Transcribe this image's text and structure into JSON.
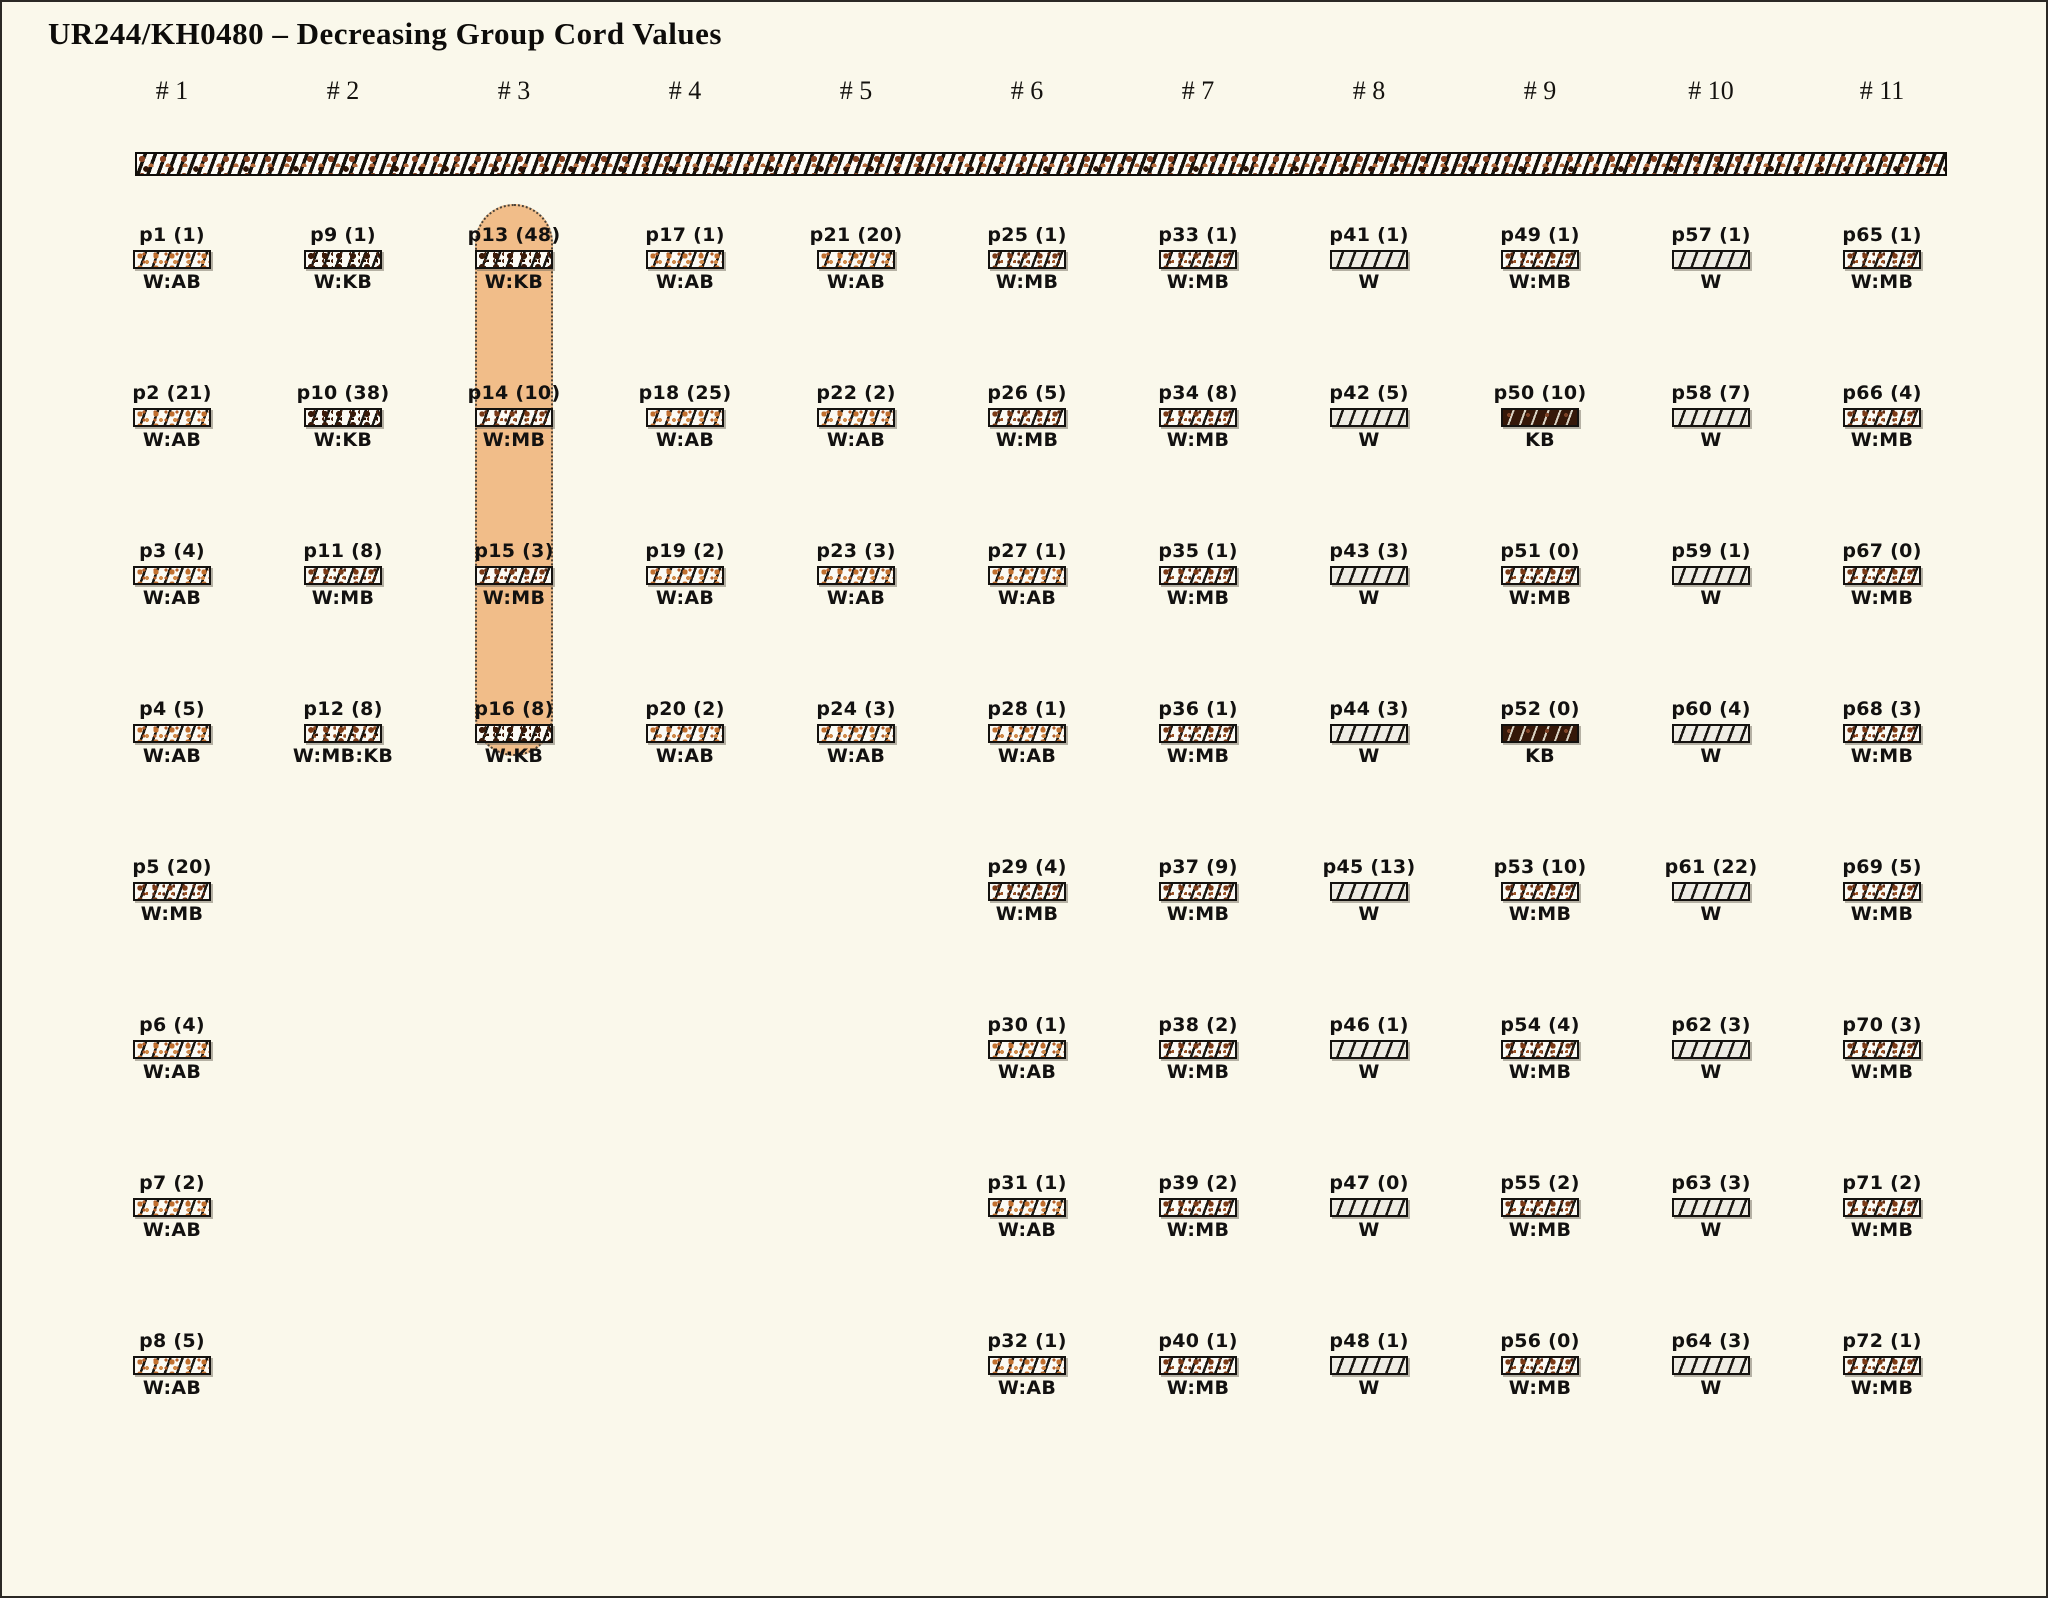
{
  "title": "UR244/KH0480 – Decreasing Group Cord Values",
  "highlight": {
    "column_header": "# 3",
    "pendant_range": "p13–p16",
    "fill_color": "#f1bd89"
  },
  "palette": {
    "background": "#faf8eb",
    "stripe": "#1a1712",
    "ab_speckle": "#c2702f",
    "mb_speckle": "#7c3a16",
    "kb_speckle": "#2c1305",
    "kb_solid": "#351809"
  },
  "primary_cord": {
    "description": "mottled white/brown barber-pole cord"
  },
  "columns": [
    {
      "header": "# 1",
      "pendants": [
        {
          "id": "p1",
          "label": "p1 (1)",
          "value": 1,
          "cord": "W:AB"
        },
        {
          "id": "p2",
          "label": "p2 (21)",
          "value": 21,
          "cord": "W:AB"
        },
        {
          "id": "p3",
          "label": "p3 (4)",
          "value": 4,
          "cord": "W:AB"
        },
        {
          "id": "p4",
          "label": "p4 (5)",
          "value": 5,
          "cord": "W:AB"
        },
        {
          "id": "p5",
          "label": "p5 (20)",
          "value": 20,
          "cord": "W:MB"
        },
        {
          "id": "p6",
          "label": "p6 (4)",
          "value": 4,
          "cord": "W:AB"
        },
        {
          "id": "p7",
          "label": "p7 (2)",
          "value": 2,
          "cord": "W:AB"
        },
        {
          "id": "p8",
          "label": "p8 (5)",
          "value": 5,
          "cord": "W:AB"
        }
      ]
    },
    {
      "header": "# 2",
      "pendants": [
        {
          "id": "p9",
          "label": "p9 (1)",
          "value": 1,
          "cord": "W:KB"
        },
        {
          "id": "p10",
          "label": "p10 (38)",
          "value": 38,
          "cord": "W:KB"
        },
        {
          "id": "p11",
          "label": "p11 (8)",
          "value": 8,
          "cord": "W:MB"
        },
        {
          "id": "p12",
          "label": "p12 (8)",
          "value": 8,
          "cord": "W:MB:KB"
        }
      ]
    },
    {
      "header": "# 3",
      "pendants": [
        {
          "id": "p13",
          "label": "p13 (48)",
          "value": 48,
          "cord": "W:KB"
        },
        {
          "id": "p14",
          "label": "p14 (10)",
          "value": 10,
          "cord": "W:MB"
        },
        {
          "id": "p15",
          "label": "p15 (3)",
          "value": 3,
          "cord": "W:MB"
        },
        {
          "id": "p16",
          "label": "p16 (8)",
          "value": 8,
          "cord": "W:KB"
        }
      ]
    },
    {
      "header": "# 4",
      "pendants": [
        {
          "id": "p17",
          "label": "p17 (1)",
          "value": 1,
          "cord": "W:AB"
        },
        {
          "id": "p18",
          "label": "p18 (25)",
          "value": 25,
          "cord": "W:AB"
        },
        {
          "id": "p19",
          "label": "p19 (2)",
          "value": 2,
          "cord": "W:AB"
        },
        {
          "id": "p20",
          "label": "p20 (2)",
          "value": 2,
          "cord": "W:AB"
        }
      ]
    },
    {
      "header": "# 5",
      "pendants": [
        {
          "id": "p21",
          "label": "p21 (20)",
          "value": 20,
          "cord": "W:AB"
        },
        {
          "id": "p22",
          "label": "p22 (2)",
          "value": 2,
          "cord": "W:AB"
        },
        {
          "id": "p23",
          "label": "p23 (3)",
          "value": 3,
          "cord": "W:AB"
        },
        {
          "id": "p24",
          "label": "p24 (3)",
          "value": 3,
          "cord": "W:AB"
        }
      ]
    },
    {
      "header": "# 6",
      "pendants": [
        {
          "id": "p25",
          "label": "p25 (1)",
          "value": 1,
          "cord": "W:MB"
        },
        {
          "id": "p26",
          "label": "p26 (5)",
          "value": 5,
          "cord": "W:MB"
        },
        {
          "id": "p27",
          "label": "p27 (1)",
          "value": 1,
          "cord": "W:AB"
        },
        {
          "id": "p28",
          "label": "p28 (1)",
          "value": 1,
          "cord": "W:AB"
        },
        {
          "id": "p29",
          "label": "p29 (4)",
          "value": 4,
          "cord": "W:MB"
        },
        {
          "id": "p30",
          "label": "p30 (1)",
          "value": 1,
          "cord": "W:AB"
        },
        {
          "id": "p31",
          "label": "p31 (1)",
          "value": 1,
          "cord": "W:AB"
        },
        {
          "id": "p32",
          "label": "p32 (1)",
          "value": 1,
          "cord": "W:AB"
        }
      ]
    },
    {
      "header": "# 7",
      "pendants": [
        {
          "id": "p33",
          "label": "p33 (1)",
          "value": 1,
          "cord": "W:MB"
        },
        {
          "id": "p34",
          "label": "p34 (8)",
          "value": 8,
          "cord": "W:MB"
        },
        {
          "id": "p35",
          "label": "p35 (1)",
          "value": 1,
          "cord": "W:MB"
        },
        {
          "id": "p36",
          "label": "p36 (1)",
          "value": 1,
          "cord": "W:MB"
        },
        {
          "id": "p37",
          "label": "p37 (9)",
          "value": 9,
          "cord": "W:MB"
        },
        {
          "id": "p38",
          "label": "p38 (2)",
          "value": 2,
          "cord": "W:MB"
        },
        {
          "id": "p39",
          "label": "p39 (2)",
          "value": 2,
          "cord": "W:MB"
        },
        {
          "id": "p40",
          "label": "p40 (1)",
          "value": 1,
          "cord": "W:MB"
        }
      ]
    },
    {
      "header": "# 8",
      "pendants": [
        {
          "id": "p41",
          "label": "p41 (1)",
          "value": 1,
          "cord": "W"
        },
        {
          "id": "p42",
          "label": "p42 (5)",
          "value": 5,
          "cord": "W"
        },
        {
          "id": "p43",
          "label": "p43 (3)",
          "value": 3,
          "cord": "W"
        },
        {
          "id": "p44",
          "label": "p44 (3)",
          "value": 3,
          "cord": "W"
        },
        {
          "id": "p45",
          "label": "p45 (13)",
          "value": 13,
          "cord": "W"
        },
        {
          "id": "p46",
          "label": "p46 (1)",
          "value": 1,
          "cord": "W"
        },
        {
          "id": "p47",
          "label": "p47 (0)",
          "value": 0,
          "cord": "W"
        },
        {
          "id": "p48",
          "label": "p48 (1)",
          "value": 1,
          "cord": "W"
        }
      ]
    },
    {
      "header": "# 9",
      "pendants": [
        {
          "id": "p49",
          "label": "p49 (1)",
          "value": 1,
          "cord": "W:MB"
        },
        {
          "id": "p50",
          "label": "p50 (10)",
          "value": 10,
          "cord": "KB"
        },
        {
          "id": "p51",
          "label": "p51 (0)",
          "value": 0,
          "cord": "W:MB"
        },
        {
          "id": "p52",
          "label": "p52 (0)",
          "value": 0,
          "cord": "KB"
        },
        {
          "id": "p53",
          "label": "p53 (10)",
          "value": 10,
          "cord": "W:MB"
        },
        {
          "id": "p54",
          "label": "p54 (4)",
          "value": 4,
          "cord": "W:MB"
        },
        {
          "id": "p55",
          "label": "p55 (2)",
          "value": 2,
          "cord": "W:MB"
        },
        {
          "id": "p56",
          "label": "p56 (0)",
          "value": 0,
          "cord": "W:MB"
        }
      ]
    },
    {
      "header": "# 10",
      "pendants": [
        {
          "id": "p57",
          "label": "p57 (1)",
          "value": 1,
          "cord": "W"
        },
        {
          "id": "p58",
          "label": "p58 (7)",
          "value": 7,
          "cord": "W"
        },
        {
          "id": "p59",
          "label": "p59 (1)",
          "value": 1,
          "cord": "W"
        },
        {
          "id": "p60",
          "label": "p60 (4)",
          "value": 4,
          "cord": "W"
        },
        {
          "id": "p61",
          "label": "p61 (22)",
          "value": 22,
          "cord": "W"
        },
        {
          "id": "p62",
          "label": "p62 (3)",
          "value": 3,
          "cord": "W"
        },
        {
          "id": "p63",
          "label": "p63 (3)",
          "value": 3,
          "cord": "W"
        },
        {
          "id": "p64",
          "label": "p64 (3)",
          "value": 3,
          "cord": "W"
        }
      ]
    },
    {
      "header": "# 11",
      "pendants": [
        {
          "id": "p65",
          "label": "p65 (1)",
          "value": 1,
          "cord": "W:MB"
        },
        {
          "id": "p66",
          "label": "p66 (4)",
          "value": 4,
          "cord": "W:MB"
        },
        {
          "id": "p67",
          "label": "p67 (0)",
          "value": 0,
          "cord": "W:MB"
        },
        {
          "id": "p68",
          "label": "p68 (3)",
          "value": 3,
          "cord": "W:MB"
        },
        {
          "id": "p69",
          "label": "p69 (5)",
          "value": 5,
          "cord": "W:MB"
        },
        {
          "id": "p70",
          "label": "p70 (3)",
          "value": 3,
          "cord": "W:MB"
        },
        {
          "id": "p71",
          "label": "p71 (2)",
          "value": 2,
          "cord": "W:MB"
        },
        {
          "id": "p72",
          "label": "p72 (1)",
          "value": 1,
          "cord": "W:MB"
        }
      ]
    }
  ]
}
